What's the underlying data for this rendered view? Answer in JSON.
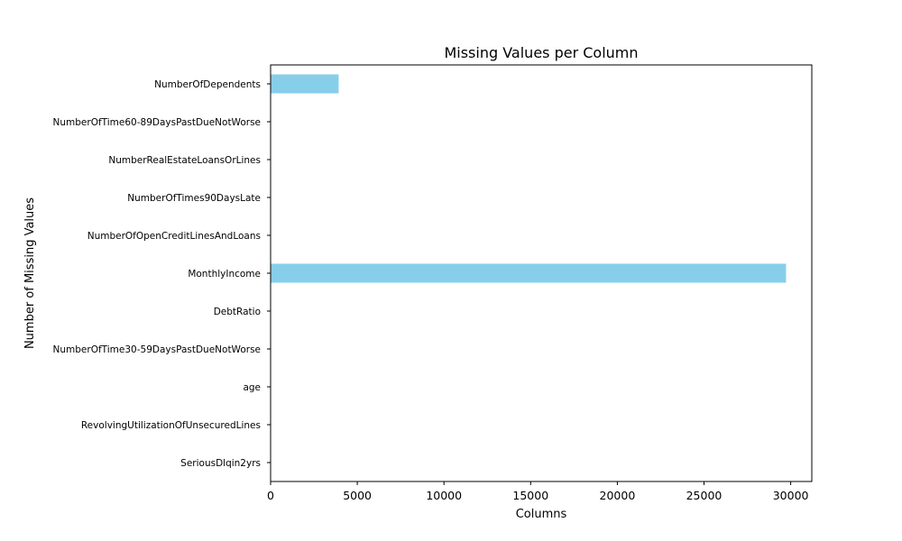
{
  "chart_data": {
    "type": "bar",
    "orientation": "horizontal",
    "title": "Missing Values per Column",
    "xlabel": "Columns",
    "ylabel": "Number of Missing Values",
    "categories": [
      "SeriousDlqin2yrs",
      "RevolvingUtilizationOfUnsecuredLines",
      "age",
      "NumberOfTime30-59DaysPastDueNotWorse",
      "DebtRatio",
      "MonthlyIncome",
      "NumberOfOpenCreditLinesAndLoans",
      "NumberOfTimes90DaysLate",
      "NumberRealEstateLoansOrLines",
      "NumberOfTime60-89DaysPastDueNotWorse",
      "NumberOfDependents"
    ],
    "values": [
      0,
      0,
      0,
      0,
      0,
      29731,
      0,
      0,
      0,
      0,
      3924
    ],
    "xlim": [
      0,
      31217
    ],
    "xticks": [
      0,
      5000,
      10000,
      15000,
      20000,
      25000,
      30000
    ],
    "grid": false,
    "colors": {
      "bar": "#87ceeb",
      "axes": "#000000"
    }
  }
}
